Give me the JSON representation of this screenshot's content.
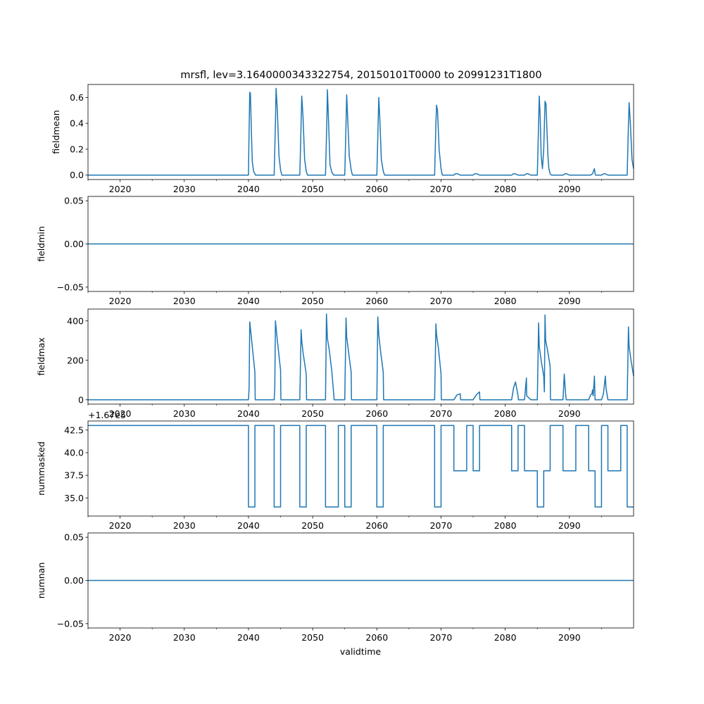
{
  "figure": {
    "title": "mrsfl, lev=3.1640000343322754, 20150101T0000 to 20991231T1800",
    "xlabel": "validtime",
    "line_color": "#1f77b4"
  },
  "chart_data": [
    {
      "type": "line",
      "ylabel": "fieldmean",
      "xlim": [
        2015.0,
        2100.0
      ],
      "ylim": [
        -0.034,
        0.7
      ],
      "xticks": [
        2020,
        2030,
        2040,
        2050,
        2060,
        2070,
        2080,
        2090
      ],
      "yticks": [
        0.0,
        0.2,
        0.4,
        0.6
      ],
      "ytick_labels": [
        "0.0",
        "0.2",
        "0.4",
        "0.6"
      ],
      "x": [
        2015.0,
        2040.0,
        2040.05,
        2040.1,
        2040.2,
        2040.3,
        2040.45,
        2040.6,
        2040.8,
        2041.1,
        2044.0,
        2044.1,
        2044.2,
        2044.3,
        2044.5,
        2044.75,
        2045.0,
        2045.2,
        2048.0,
        2048.1,
        2048.2,
        2048.3,
        2048.5,
        2048.75,
        2049.0,
        2049.2,
        2052.0,
        2052.1,
        2052.2,
        2052.3,
        2052.45,
        2052.7,
        2053.0,
        2053.3,
        2055.0,
        2055.1,
        2055.2,
        2055.3,
        2055.45,
        2055.7,
        2056.0,
        2056.2,
        2060.0,
        2060.1,
        2060.2,
        2060.3,
        2060.45,
        2060.7,
        2061.0,
        2061.2,
        2069.0,
        2069.1,
        2069.2,
        2069.3,
        2069.45,
        2069.7,
        2070.0,
        2070.2,
        2072.0,
        2072.2,
        2072.6,
        2073.0,
        2075.0,
        2075.2,
        2075.6,
        2076.0,
        2081.0,
        2081.3,
        2081.6,
        2082.0,
        2083.0,
        2083.3,
        2083.6,
        2084.0,
        2085.0,
        2085.1,
        2085.2,
        2085.3,
        2085.45,
        2085.6,
        2085.8,
        2086.0,
        2086.2,
        2086.35,
        2086.5,
        2086.65,
        2086.8,
        2087.0,
        2087.2,
        2089.0,
        2089.3,
        2089.6,
        2090.0,
        2093.0,
        2093.3,
        2093.6,
        2093.9,
        2094.0,
        2094.1,
        2094.3,
        2095.0,
        2095.3,
        2095.6,
        2096.0,
        2099.0,
        2099.1,
        2099.2,
        2099.3,
        2099.5,
        2099.75,
        2100.0
      ],
      "y": [
        0.0,
        0.0,
        0.19,
        0.35,
        0.64,
        0.63,
        0.35,
        0.1,
        0.03,
        0.0,
        0.0,
        0.2,
        0.4,
        0.67,
        0.5,
        0.15,
        0.04,
        0.0,
        0.0,
        0.2,
        0.4,
        0.61,
        0.45,
        0.12,
        0.03,
        0.0,
        0.0,
        0.2,
        0.4,
        0.66,
        0.45,
        0.08,
        0.02,
        0.0,
        0.0,
        0.2,
        0.4,
        0.62,
        0.45,
        0.15,
        0.04,
        0.0,
        0.0,
        0.2,
        0.4,
        0.6,
        0.45,
        0.12,
        0.03,
        0.0,
        0.0,
        0.2,
        0.4,
        0.54,
        0.5,
        0.2,
        0.05,
        0.0,
        0.0,
        0.01,
        0.01,
        0.0,
        0.0,
        0.01,
        0.01,
        0.0,
        0.0,
        0.01,
        0.01,
        0.0,
        0.0,
        0.01,
        0.01,
        0.0,
        0.0,
        0.2,
        0.4,
        0.61,
        0.45,
        0.15,
        0.05,
        0.2,
        0.57,
        0.55,
        0.35,
        0.15,
        0.05,
        0.01,
        0.0,
        0.0,
        0.01,
        0.01,
        0.0,
        0.0,
        0.0,
        0.01,
        0.05,
        0.01,
        0.0,
        0.0,
        0.0,
        0.01,
        0.01,
        0.0,
        0.0,
        0.2,
        0.4,
        0.56,
        0.4,
        0.12,
        0.05
      ]
    },
    {
      "type": "line",
      "ylabel": "fieldmin",
      "xlim": [
        2015.0,
        2100.0
      ],
      "ylim": [
        -0.055,
        0.055
      ],
      "xticks": [
        2020,
        2030,
        2040,
        2050,
        2060,
        2070,
        2080,
        2090
      ],
      "yticks": [
        -0.05,
        0.0,
        0.05
      ],
      "ytick_labels": [
        "−0.05",
        "0.00",
        "0.05"
      ],
      "x": [
        2015.0,
        2100.0
      ],
      "y": [
        0.0,
        0.0
      ]
    },
    {
      "type": "line",
      "ylabel": "fieldmax",
      "xlim": [
        2015.0,
        2100.0
      ],
      "ylim": [
        -22,
        460
      ],
      "xticks": [
        2020,
        2030,
        2040,
        2050,
        2060,
        2070,
        2080,
        2090
      ],
      "yticks": [
        0,
        200,
        400
      ],
      "ytick_labels": [
        "0",
        "200",
        "400"
      ],
      "x": [
        2015.0,
        2040.0,
        2040.1,
        2040.2,
        2040.5,
        2041.0,
        2041.05,
        2044.0,
        2044.1,
        2044.2,
        2044.5,
        2045.0,
        2045.05,
        2048.0,
        2048.2,
        2048.3,
        2048.5,
        2049.0,
        2049.05,
        2052.0,
        2052.15,
        2052.3,
        2052.6,
        2053.0,
        2053.3,
        2053.35,
        2055.0,
        2055.2,
        2055.3,
        2055.6,
        2056.0,
        2056.05,
        2060.0,
        2060.15,
        2060.3,
        2060.6,
        2061.0,
        2061.05,
        2069.0,
        2069.2,
        2069.3,
        2069.6,
        2070.0,
        2070.05,
        2072.0,
        2072.5,
        2073.0,
        2073.05,
        2075.0,
        2075.5,
        2076.0,
        2076.05,
        2081.0,
        2081.3,
        2081.6,
        2082.0,
        2082.05,
        2083.0,
        2083.3,
        2083.35,
        2084.0,
        2085.0,
        2085.2,
        2085.3,
        2085.6,
        2086.0,
        2086.1,
        2086.2,
        2086.3,
        2086.6,
        2087.0,
        2087.05,
        2089.0,
        2089.2,
        2089.4,
        2089.5,
        2093.0,
        2093.3,
        2093.5,
        2093.6,
        2093.7,
        2093.9,
        2094.0,
        2095.0,
        2095.3,
        2095.6,
        2095.7,
        2096.0,
        2099.0,
        2099.2,
        2099.3,
        2099.6,
        2100.0
      ],
      "y": [
        0.0,
        0.0,
        60,
        395,
        300,
        140,
        0,
        0,
        60,
        400,
        300,
        150,
        0,
        0,
        355,
        300,
        240,
        130,
        0,
        0,
        435,
        310,
        250,
        140,
        20,
        0,
        0,
        415,
        320,
        240,
        140,
        0,
        0,
        420,
        330,
        240,
        140,
        0,
        0,
        385,
        330,
        260,
        130,
        0,
        0,
        25,
        30,
        0,
        0,
        25,
        40,
        0,
        0,
        60,
        90,
        20,
        0,
        0,
        110,
        20,
        0,
        0,
        390,
        270,
        200,
        120,
        40,
        430,
        300,
        250,
        170,
        0,
        0,
        130,
        30,
        0,
        0,
        25,
        30,
        50,
        20,
        120,
        0,
        0,
        30,
        120,
        60,
        0,
        0,
        370,
        270,
        200,
        120
      ]
    },
    {
      "type": "line",
      "ylabel": "nummasked",
      "offset_text": "+1.67e5",
      "xlim": [
        2015.0,
        2100.0
      ],
      "ylim": [
        33.0,
        43.5
      ],
      "xticks": [
        2020,
        2030,
        2040,
        2050,
        2060,
        2070,
        2080,
        2090
      ],
      "yticks": [
        35.0,
        37.5,
        40.0,
        42.5
      ],
      "ytick_labels": [
        "35.0",
        "37.5",
        "40.0",
        "42.5"
      ],
      "x": [
        2015.0,
        2040.0,
        2040.0,
        2041.0,
        2041.0,
        2044.0,
        2044.0,
        2045.0,
        2045.0,
        2048.0,
        2048.0,
        2049.0,
        2049.0,
        2052.0,
        2052.0,
        2054.0,
        2054.0,
        2055.0,
        2055.0,
        2056.0,
        2056.0,
        2060.0,
        2060.0,
        2061.0,
        2061.0,
        2069.0,
        2069.0,
        2070.0,
        2070.0,
        2072.0,
        2072.0,
        2074.0,
        2074.0,
        2075.0,
        2075.0,
        2076.0,
        2076.0,
        2081.0,
        2081.0,
        2082.0,
        2082.0,
        2083.0,
        2083.0,
        2085.0,
        2085.0,
        2086.0,
        2086.0,
        2087.0,
        2087.0,
        2089.0,
        2089.0,
        2091.0,
        2091.0,
        2093.0,
        2093.0,
        2094.0,
        2094.0,
        2095.0,
        2095.0,
        2096.0,
        2096.0,
        2098.0,
        2098.0,
        2099.0,
        2099.0,
        2100.0
      ],
      "y": [
        43.0,
        43.0,
        34.0,
        34.0,
        43.0,
        43.0,
        34.0,
        34.0,
        43.0,
        43.0,
        34.0,
        34.0,
        43.0,
        43.0,
        34.0,
        34.0,
        43.0,
        43.0,
        34.0,
        34.0,
        43.0,
        43.0,
        34.0,
        34.0,
        43.0,
        43.0,
        34.0,
        34.0,
        43.0,
        43.0,
        38.0,
        38.0,
        43.0,
        43.0,
        38.0,
        38.0,
        43.0,
        43.0,
        38.0,
        38.0,
        43.0,
        43.0,
        38.0,
        38.0,
        34.0,
        34.0,
        38.0,
        38.0,
        43.0,
        43.0,
        38.0,
        38.0,
        43.0,
        43.0,
        38.0,
        38.0,
        34.0,
        34.0,
        43.0,
        43.0,
        38.0,
        38.0,
        43.0,
        43.0,
        34.0,
        34.0
      ]
    },
    {
      "type": "line",
      "ylabel": "numnan",
      "xlim": [
        2015.0,
        2100.0
      ],
      "ylim": [
        -0.055,
        0.055
      ],
      "xticks": [
        2020,
        2030,
        2040,
        2050,
        2060,
        2070,
        2080,
        2090
      ],
      "yticks": [
        -0.05,
        0.0,
        0.05
      ],
      "ytick_labels": [
        "−0.05",
        "0.00",
        "0.05"
      ],
      "x": [
        2015.0,
        2100.0
      ],
      "y": [
        0.0,
        0.0
      ]
    }
  ]
}
